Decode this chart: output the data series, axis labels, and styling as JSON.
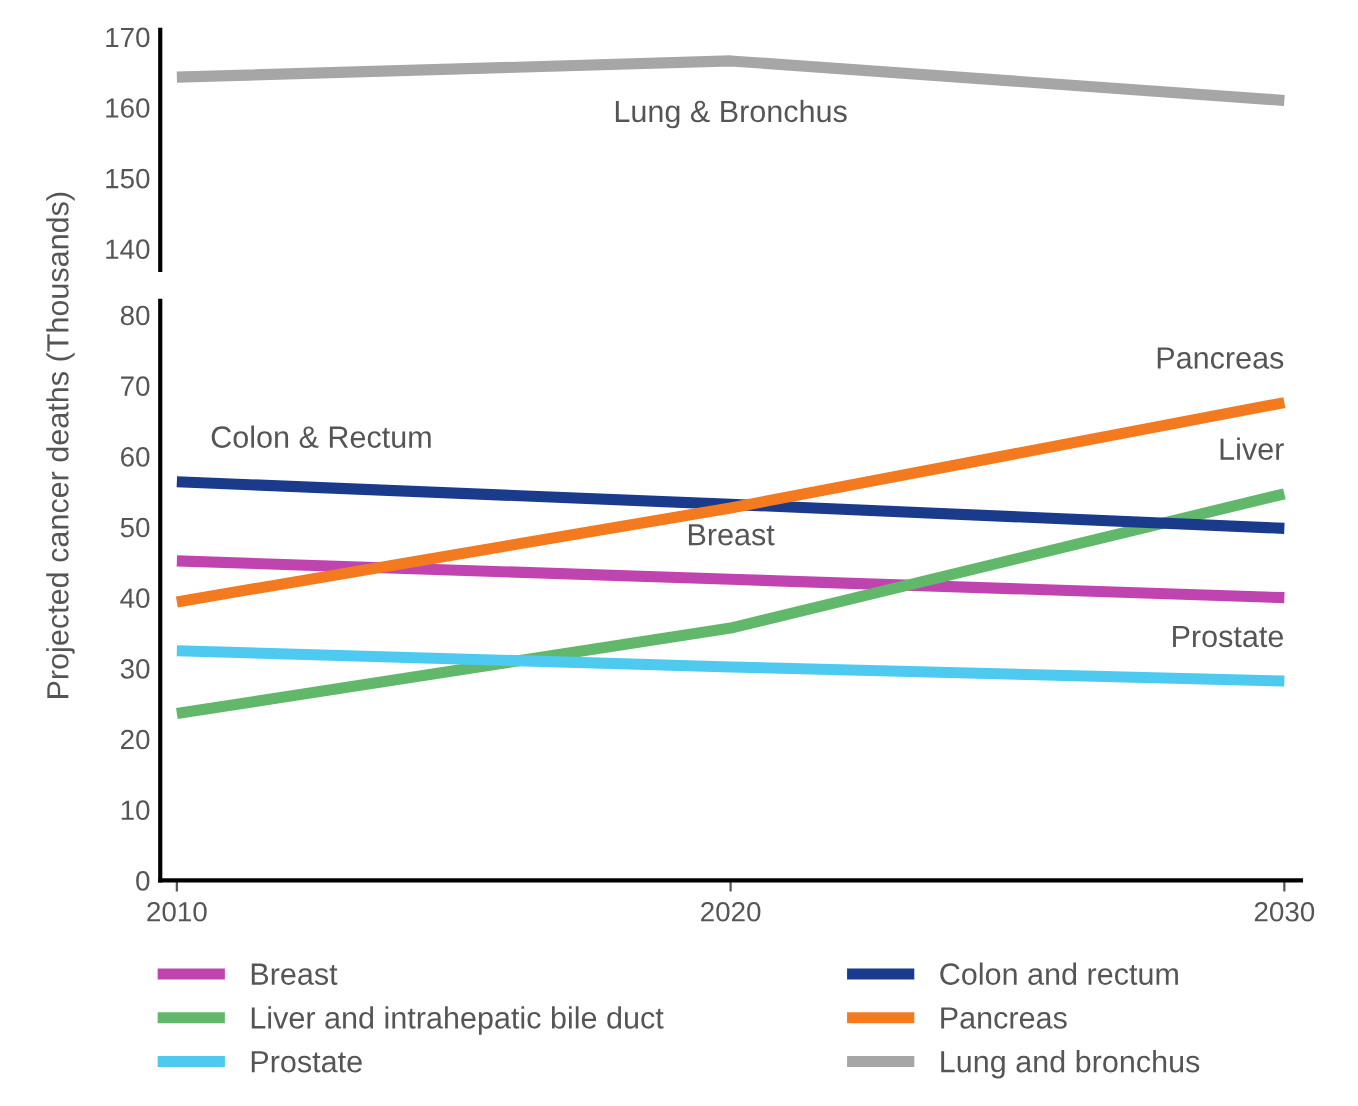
{
  "chart_data": [
    {
      "type": "line",
      "categories": [
        "2010",
        "2020",
        "2030"
      ],
      "ylim": [
        137,
        171
      ],
      "yticks": [
        140,
        150,
        160,
        170
      ],
      "tick_labels": "y",
      "legend": "bottom",
      "grid": false,
      "series": [
        {
          "name": "Lung and bronchus",
          "color": "#a6a6a6",
          "values": [
            164.3,
            166.6,
            161
          ]
        }
      ],
      "annotations": [
        {
          "text": "Lung & Bronchus",
          "x": "2020",
          "y": 166.6
        }
      ]
    },
    {
      "type": "line",
      "categories": [
        "2010",
        "2020",
        "2030"
      ],
      "ylim": [
        0,
        82
      ],
      "yticks": [
        0,
        10,
        20,
        30,
        40,
        50,
        60,
        70,
        80
      ],
      "ylabel": "Projected cancer deaths (Thousands)",
      "legend": "bottom",
      "grid": false,
      "series": [
        {
          "name": "Breast",
          "color": "#c044b0",
          "values": [
            45.2,
            42.6,
            40
          ]
        },
        {
          "name": "Liver and intrahepatic bile duct",
          "color": "#62b86a",
          "values": [
            23.6,
            35.7,
            54.7
          ]
        },
        {
          "name": "Prostate",
          "color": "#4ec9ef",
          "values": [
            32.5,
            30.2,
            28.2
          ]
        },
        {
          "name": "Colon and rectum",
          "color": "#1a3a8c",
          "values": [
            56.4,
            53.2,
            49.8
          ]
        },
        {
          "name": "Pancreas",
          "color": "#f47a20",
          "values": [
            39.4,
            52.7,
            67.6
          ]
        }
      ],
      "annotations": [
        {
          "text": "Colon & Rectum",
          "x": "2010",
          "y": 56.4
        },
        {
          "text": "Breast",
          "x": "2020",
          "y": 42.6
        },
        {
          "text": "Pancreas",
          "x": "2030",
          "y": 67.6
        },
        {
          "text": "Liver",
          "x": "2030",
          "y": 54.7
        },
        {
          "text": "Prostate",
          "x": "2030",
          "y": 28.2
        }
      ]
    }
  ]
}
